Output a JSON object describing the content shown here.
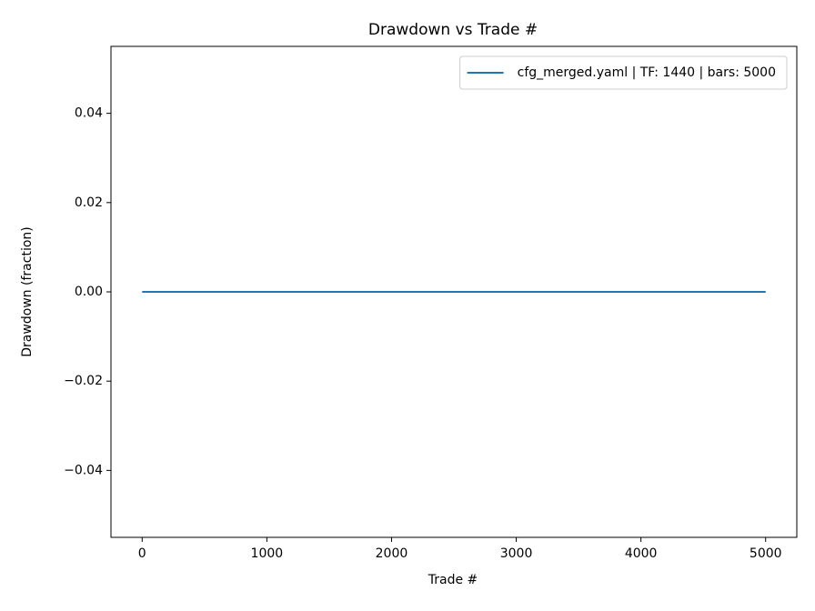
{
  "chart_data": {
    "type": "line",
    "title": "Drawdown vs Trade #",
    "xlabel": "Trade #",
    "ylabel": "Drawdown (fraction)",
    "x": [
      0,
      5000
    ],
    "series": [
      {
        "name": "cfg_merged.yaml | TF: 1440 | bars: 5000",
        "color": "#1f77b4",
        "values": [
          0,
          0
        ]
      }
    ],
    "xlim": [
      -250,
      5250
    ],
    "xticks": [
      0,
      1000,
      2000,
      3000,
      4000,
      5000
    ],
    "ylim": [
      -0.055,
      0.055
    ],
    "yticks": [
      {
        "value": -0.04,
        "label": "−0.04"
      },
      {
        "value": -0.02,
        "label": "−0.02"
      },
      {
        "value": 0,
        "label": "0.00"
      },
      0.02,
      0.04
    ],
    "grid": false,
    "legend": "upper right"
  }
}
